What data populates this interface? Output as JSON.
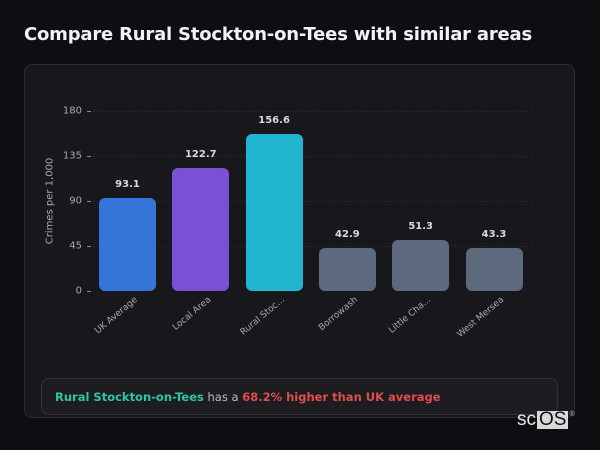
{
  "page": {
    "title": "Compare Rural Stockton-on-Tees with similar areas"
  },
  "chart_data": {
    "type": "bar",
    "title": "",
    "xlabel": "",
    "ylabel": "Crimes per 1,000",
    "ylim": [
      0,
      180
    ],
    "yticks": [
      0,
      45,
      90,
      135,
      180
    ],
    "grid": true,
    "legend": "none",
    "categories": [
      "UK Average",
      "Local Area",
      "Rural Stoc...",
      "Borrowash",
      "Little Cha...",
      "West Mersea"
    ],
    "values": [
      93.1,
      122.7,
      156.6,
      42.9,
      51.3,
      43.3
    ],
    "value_labels": [
      "93.1",
      "122.7",
      "156.6",
      "42.9",
      "51.3",
      "43.3"
    ],
    "colors": [
      "#3575d9",
      "#7b4fd6",
      "#20b6cf",
      "#5d6a7d",
      "#5d6a7d",
      "#5d6a7d"
    ]
  },
  "callout": {
    "area_name": "Rural Stockton-on-Tees",
    "middle_text": "has a",
    "highlight_text": "68.2% higher than UK average",
    "area_color": "#2ec7a6",
    "highlight_color": "#e24c4c"
  },
  "logo": {
    "part1": "sc",
    "part2": "OS",
    "mark": "®"
  }
}
